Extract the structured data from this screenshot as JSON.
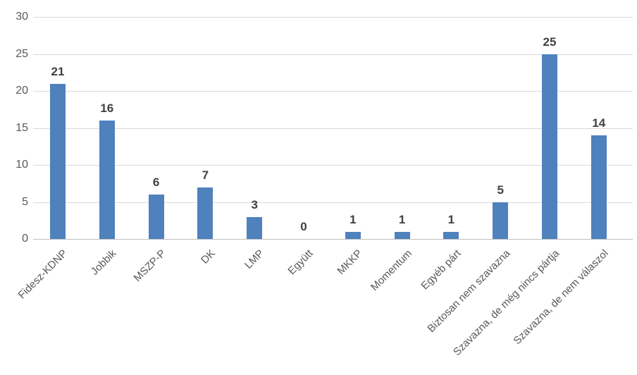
{
  "chart_data": {
    "type": "bar",
    "title": "",
    "xlabel": "",
    "ylabel": "",
    "categories": [
      "Fidesz-KDNP",
      "Jobbik",
      "MSZP-P",
      "DK",
      "LMP",
      "Együtt",
      "MKKP",
      "Momentum",
      "Egyéb párt",
      "Biztosan nem szavazna",
      "Szavazna, de még nincs pártja",
      "Szavazna, de nem válaszol"
    ],
    "values": [
      21,
      16,
      6,
      7,
      3,
      0,
      1,
      1,
      1,
      5,
      25,
      14
    ],
    "ylim": [
      0,
      30
    ],
    "yticks": [
      0,
      5,
      10,
      15,
      20,
      25,
      30
    ],
    "grid": true,
    "legend_position": "none",
    "data_labels_shown": true,
    "colors": {
      "bar": "#4f81bd",
      "gridline": "#d9d9d9",
      "axis_line": "#bfbfbf",
      "tick_label": "#595959",
      "data_label": "#404040",
      "background": "#ffffff"
    }
  }
}
